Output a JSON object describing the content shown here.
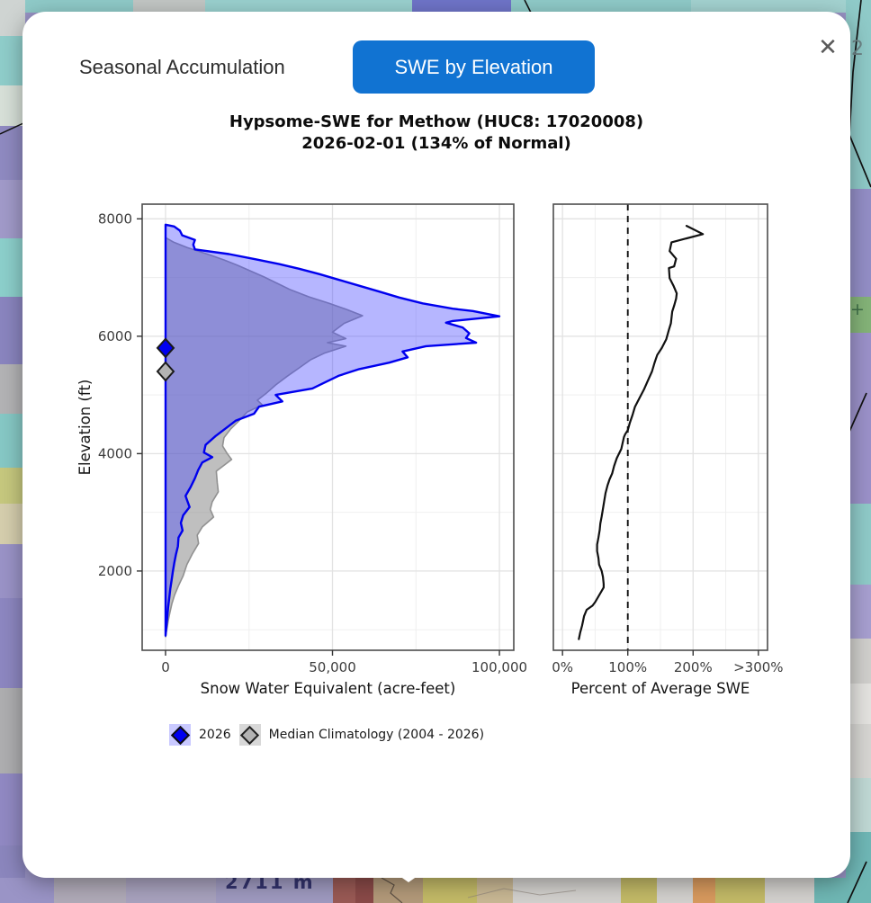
{
  "modal": {
    "tabs": [
      {
        "label": "Seasonal Accumulation",
        "active": false
      },
      {
        "label": "SWE by Elevation",
        "active": true
      }
    ],
    "close_icon": "✕",
    "title_line1": "Hypsome-SWE for Methow (HUC8: 17020008)",
    "title_line2": "2026-02-01 (134% of Normal)"
  },
  "map": {
    "elevation_label": "2711 m",
    "corner_label": "2",
    "plus_label": "+"
  },
  "legend": {
    "items": [
      {
        "label": "2026",
        "swatch_bg": "#c9c9ff",
        "diamond_fill": "#0000f0",
        "diamond_stroke": "#111111"
      },
      {
        "label": "Median Climatology (2004 - 2026)",
        "swatch_bg": "#d8d8d8",
        "diamond_fill": "#b3b3b3",
        "diamond_stroke": "#222222"
      }
    ]
  },
  "accent_colors": {
    "active_tab_blue": "#1173d2",
    "series_2026_blue": "#0000ee",
    "series_median_gray": "#919191"
  },
  "chart_data": [
    {
      "type": "area",
      "xlabel": "Snow Water Equivalent (acre-feet)",
      "ylabel": "Elevation (ft)",
      "xlim": [
        -7000,
        104300
      ],
      "ylim": [
        650,
        8250
      ],
      "xticks": [
        {
          "v": 0,
          "label": "0"
        },
        {
          "v": 50000,
          "label": "50,000"
        },
        {
          "v": 100000,
          "label": "100,000"
        }
      ],
      "yticks": [
        {
          "v": 2000,
          "label": "2000"
        },
        {
          "v": 4000,
          "label": "4000"
        },
        {
          "v": 6000,
          "label": "6000"
        },
        {
          "v": 8000,
          "label": "8000"
        }
      ],
      "x_minor": [
        25000,
        75000
      ],
      "y_minor": [
        1000,
        3000,
        5000,
        7000
      ],
      "show_y_tick_labels": true,
      "series": [
        {
          "name": "Median Climatology (2004 - 2026)",
          "line_color": "#919191",
          "line_width": 1.6,
          "fill_color": "rgba(128,128,128,0.5)",
          "points": [
            [
              0,
              7680
            ],
            [
              2500,
              7600
            ],
            [
              6500,
              7510
            ],
            [
              9800,
              7450
            ],
            [
              13500,
              7380
            ],
            [
              17500,
              7300
            ],
            [
              21500,
              7210
            ],
            [
              25500,
              7110
            ],
            [
              29500,
              7010
            ],
            [
              33500,
              6900
            ],
            [
              37500,
              6790
            ],
            [
              43000,
              6670
            ],
            [
              49000,
              6560
            ],
            [
              54000,
              6460
            ],
            [
              59000,
              6350
            ],
            [
              53500,
              6220
            ],
            [
              50000,
              6070
            ],
            [
              54000,
              5960
            ],
            [
              48500,
              5890
            ],
            [
              54000,
              5830
            ],
            [
              47500,
              5710
            ],
            [
              43500,
              5600
            ],
            [
              40000,
              5460
            ],
            [
              36500,
              5320
            ],
            [
              33000,
              5170
            ],
            [
              30000,
              5020
            ],
            [
              27500,
              4910
            ],
            [
              29000,
              4830
            ],
            [
              24500,
              4710
            ],
            [
              22000,
              4560
            ],
            [
              19500,
              4420
            ],
            [
              17500,
              4270
            ],
            [
              17100,
              4130
            ],
            [
              18500,
              4000
            ],
            [
              19800,
              3900
            ],
            [
              15200,
              3700
            ],
            [
              15500,
              3500
            ],
            [
              15800,
              3350
            ],
            [
              14000,
              3180
            ],
            [
              13400,
              3050
            ],
            [
              14400,
              2920
            ],
            [
              11000,
              2750
            ],
            [
              9500,
              2610
            ],
            [
              9900,
              2470
            ],
            [
              8000,
              2290
            ],
            [
              6400,
              2110
            ],
            [
              5300,
              1920
            ],
            [
              3900,
              1750
            ],
            [
              2700,
              1590
            ],
            [
              1900,
              1440
            ],
            [
              1300,
              1290
            ],
            [
              800,
              1150
            ],
            [
              500,
              1040
            ],
            [
              200,
              950
            ],
            [
              0,
              880
            ]
          ]
        },
        {
          "name": "2026",
          "line_color": "#0000ee",
          "line_width": 2.4,
          "fill_color": "rgba(64,64,255,0.38)",
          "points": [
            [
              0,
              7900
            ],
            [
              2600,
              7870
            ],
            [
              4300,
              7800
            ],
            [
              5000,
              7720
            ],
            [
              8800,
              7640
            ],
            [
              8300,
              7560
            ],
            [
              8800,
              7480
            ],
            [
              19000,
              7400
            ],
            [
              27000,
              7310
            ],
            [
              34000,
              7230
            ],
            [
              40000,
              7150
            ],
            [
              46000,
              7060
            ],
            [
              52000,
              6960
            ],
            [
              58000,
              6860
            ],
            [
              64000,
              6760
            ],
            [
              70000,
              6660
            ],
            [
              77000,
              6560
            ],
            [
              86000,
              6470
            ],
            [
              92000,
              6430
            ],
            [
              100000,
              6340
            ],
            [
              86000,
              6260
            ],
            [
              84000,
              6230
            ],
            [
              89000,
              6150
            ],
            [
              91000,
              6050
            ],
            [
              90000,
              5970
            ],
            [
              93000,
              5890
            ],
            [
              78000,
              5830
            ],
            [
              71000,
              5740
            ],
            [
              72500,
              5640
            ],
            [
              67000,
              5550
            ],
            [
              58000,
              5440
            ],
            [
              52000,
              5330
            ],
            [
              48000,
              5220
            ],
            [
              44000,
              5110
            ],
            [
              33000,
              5000
            ],
            [
              35000,
              4890
            ],
            [
              28000,
              4800
            ],
            [
              26500,
              4680
            ],
            [
              21000,
              4560
            ],
            [
              18000,
              4430
            ],
            [
              15000,
              4300
            ],
            [
              12000,
              4150
            ],
            [
              11500,
              4020
            ],
            [
              14000,
              3940
            ],
            [
              11000,
              3850
            ],
            [
              9800,
              3720
            ],
            [
              8800,
              3580
            ],
            [
              7500,
              3430
            ],
            [
              6000,
              3280
            ],
            [
              7200,
              3090
            ],
            [
              5300,
              2950
            ],
            [
              4600,
              2820
            ],
            [
              5100,
              2690
            ],
            [
              3900,
              2570
            ],
            [
              3700,
              2420
            ],
            [
              3100,
              2280
            ],
            [
              2600,
              2130
            ],
            [
              2200,
              1990
            ],
            [
              1800,
              1840
            ],
            [
              1400,
              1690
            ],
            [
              1100,
              1540
            ],
            [
              800,
              1390
            ],
            [
              500,
              1200
            ],
            [
              200,
              1020
            ],
            [
              0,
              900
            ]
          ]
        }
      ],
      "markers": [
        {
          "x": 0,
          "y": 5800,
          "fill": "#0000f0",
          "stroke": "#1a1a1a"
        },
        {
          "x": 0,
          "y": 5400,
          "fill": "#b3b3b3",
          "stroke": "#1a1a1a"
        }
      ]
    },
    {
      "type": "line",
      "xlabel": "Percent of Average SWE",
      "ylabel": "",
      "xlim": [
        -14,
        314
      ],
      "ylim": [
        650,
        8250
      ],
      "xticks": [
        {
          "v": 0,
          "label": "0%"
        },
        {
          "v": 100,
          "label": "100%"
        },
        {
          "v": 200,
          "label": "200%"
        },
        {
          "v": 300,
          "label": ">300%"
        }
      ],
      "yticks": [
        {
          "v": 2000,
          "label": ""
        },
        {
          "v": 4000,
          "label": ""
        },
        {
          "v": 6000,
          "label": ""
        },
        {
          "v": 8000,
          "label": ""
        }
      ],
      "x_minor": [
        50,
        150,
        250
      ],
      "y_minor": [
        1000,
        3000,
        5000,
        7000
      ],
      "show_y_tick_labels": false,
      "ref_line_x": 100,
      "series": [
        {
          "name": "Percent of Average SWE",
          "line_color": "#111111",
          "line_width": 2.2,
          "fill_color": "none",
          "points": [
            [
              190,
              7880
            ],
            [
              215,
              7740
            ],
            [
              167,
              7600
            ],
            [
              164,
              7450
            ],
            [
              174,
              7320
            ],
            [
              171,
              7190
            ],
            [
              163,
              7160
            ],
            [
              164,
              6990
            ],
            [
              170,
              6860
            ],
            [
              175,
              6730
            ],
            [
              174,
              6640
            ],
            [
              171,
              6520
            ],
            [
              168,
              6420
            ],
            [
              166,
              6220
            ],
            [
              163,
              6110
            ],
            [
              159,
              5950
            ],
            [
              152,
              5800
            ],
            [
              145,
              5680
            ],
            [
              141,
              5550
            ],
            [
              137,
              5400
            ],
            [
              131,
              5250
            ],
            [
              125,
              5100
            ],
            [
              118,
              4950
            ],
            [
              111,
              4800
            ],
            [
              107,
              4650
            ],
            [
              103,
              4520
            ],
            [
              100,
              4400
            ],
            [
              96,
              4330
            ],
            [
              94,
              4280
            ],
            [
              90,
              4080
            ],
            [
              83,
              3920
            ],
            [
              79,
              3790
            ],
            [
              76,
              3660
            ],
            [
              72,
              3560
            ],
            [
              69,
              3460
            ],
            [
              66,
              3330
            ],
            [
              64,
              3200
            ],
            [
              62,
              3060
            ],
            [
              60,
              2930
            ],
            [
              58,
              2810
            ],
            [
              57,
              2700
            ],
            [
              55,
              2570
            ],
            [
              53,
              2450
            ],
            [
              53,
              2340
            ],
            [
              55,
              2220
            ],
            [
              56,
              2110
            ],
            [
              60,
              2000
            ],
            [
              62,
              1900
            ],
            [
              63,
              1780
            ],
            [
              63,
              1720
            ],
            [
              50,
              1470
            ],
            [
              46,
              1410
            ],
            [
              37,
              1340
            ],
            [
              33,
              1230
            ],
            [
              30,
              1070
            ],
            [
              27,
              950
            ],
            [
              25,
              840
            ]
          ]
        }
      ]
    }
  ]
}
